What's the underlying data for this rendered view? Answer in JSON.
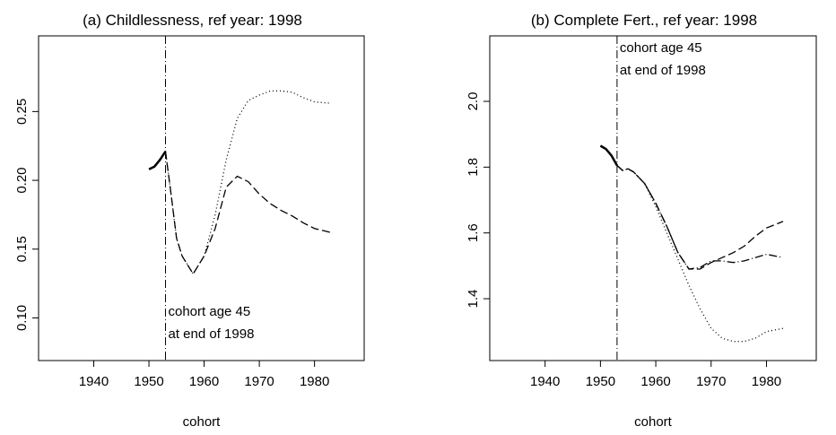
{
  "chart_data": [
    {
      "type": "line",
      "title": "(a) Childlessness, ref year: 1998",
      "xlabel": "cohort",
      "x": [
        1950,
        1951,
        1952,
        1953,
        1954,
        1955,
        1956,
        1958,
        1960,
        1962,
        1964,
        1966,
        1968,
        1970,
        1972,
        1974,
        1976,
        1978,
        1980,
        1983
      ],
      "series": [
        {
          "color": "#000000",
          "linestyle": "solid",
          "values": [
            0.208,
            0.21,
            0.215,
            0.221,
            null,
            null,
            null,
            null,
            null,
            null,
            null,
            null,
            null,
            null,
            null,
            null,
            null,
            null,
            null,
            null
          ]
        },
        {
          "color": "#000000",
          "linestyle": "dotted",
          "values": [
            null,
            null,
            null,
            0.221,
            0.19,
            0.158,
            0.145,
            0.132,
            0.145,
            0.175,
            0.215,
            0.245,
            0.258,
            0.262,
            0.265,
            0.265,
            0.264,
            0.26,
            0.257,
            0.256
          ]
        },
        {
          "color": "#000000",
          "linestyle": "dashed",
          "values": [
            null,
            null,
            null,
            0.221,
            0.19,
            0.158,
            0.145,
            0.132,
            0.145,
            0.165,
            0.195,
            0.203,
            0.199,
            0.19,
            0.183,
            0.178,
            0.174,
            0.169,
            0.165,
            0.162
          ]
        }
      ],
      "xlim": [
        1930,
        1989
      ],
      "xticks": [
        1940,
        1950,
        1960,
        1970,
        1980
      ],
      "ylim": [
        0.069,
        0.305
      ],
      "yticks": [
        {
          "value": 0.1,
          "label": "0.10"
        },
        0.15,
        {
          "value": 0.2,
          "label": "0.20"
        },
        0.25
      ],
      "vline": 1953,
      "annotation": [
        "cohort age 45",
        "at end of 1998"
      ],
      "annotation_corner": "bottom"
    },
    {
      "type": "line",
      "title": "(b) Complete Fert., ref year: 1998",
      "xlabel": "cohort",
      "x": [
        1950,
        1951,
        1952,
        1953,
        1954,
        1955,
        1956,
        1958,
        1960,
        1962,
        1964,
        1966,
        1968,
        1970,
        1972,
        1974,
        1976,
        1978,
        1980,
        1983
      ],
      "series": [
        {
          "color": "#000000",
          "linestyle": "solid",
          "values": [
            1.865,
            1.855,
            1.835,
            1.805,
            null,
            null,
            null,
            null,
            null,
            null,
            null,
            null,
            null,
            null,
            null,
            null,
            null,
            null,
            null,
            null
          ]
        },
        {
          "color": "#000000",
          "linestyle": "dotted",
          "values": [
            null,
            null,
            null,
            1.805,
            1.79,
            1.795,
            1.785,
            1.75,
            1.68,
            1.6,
            1.52,
            1.44,
            1.37,
            1.31,
            1.28,
            1.27,
            1.27,
            1.28,
            1.3,
            1.31
          ]
        },
        {
          "color": "#000000",
          "linestyle": "dashed",
          "values": [
            null,
            null,
            null,
            1.805,
            1.79,
            1.795,
            1.785,
            1.75,
            1.69,
            1.62,
            1.54,
            1.49,
            1.49,
            1.51,
            1.525,
            1.54,
            1.56,
            1.59,
            1.615,
            1.635
          ]
        },
        {
          "color": "#000000",
          "linestyle": "dashdot",
          "values": [
            null,
            null,
            null,
            1.805,
            1.79,
            1.795,
            1.785,
            1.75,
            1.69,
            1.62,
            1.54,
            1.49,
            1.495,
            1.515,
            1.515,
            1.51,
            1.515,
            1.525,
            1.535,
            1.525
          ]
        }
      ],
      "xlim": [
        1930,
        1989
      ],
      "xticks": [
        1940,
        1950,
        1960,
        1970,
        1980
      ],
      "ylim": [
        1.212,
        2.199
      ],
      "yticks": [
        1.4,
        1.6,
        1.8,
        {
          "value": 2,
          "label": "2.0"
        }
      ],
      "vline": 1953,
      "annotation": [
        "cohort age 45",
        "at end of 1998"
      ],
      "annotation_corner": "top"
    }
  ]
}
